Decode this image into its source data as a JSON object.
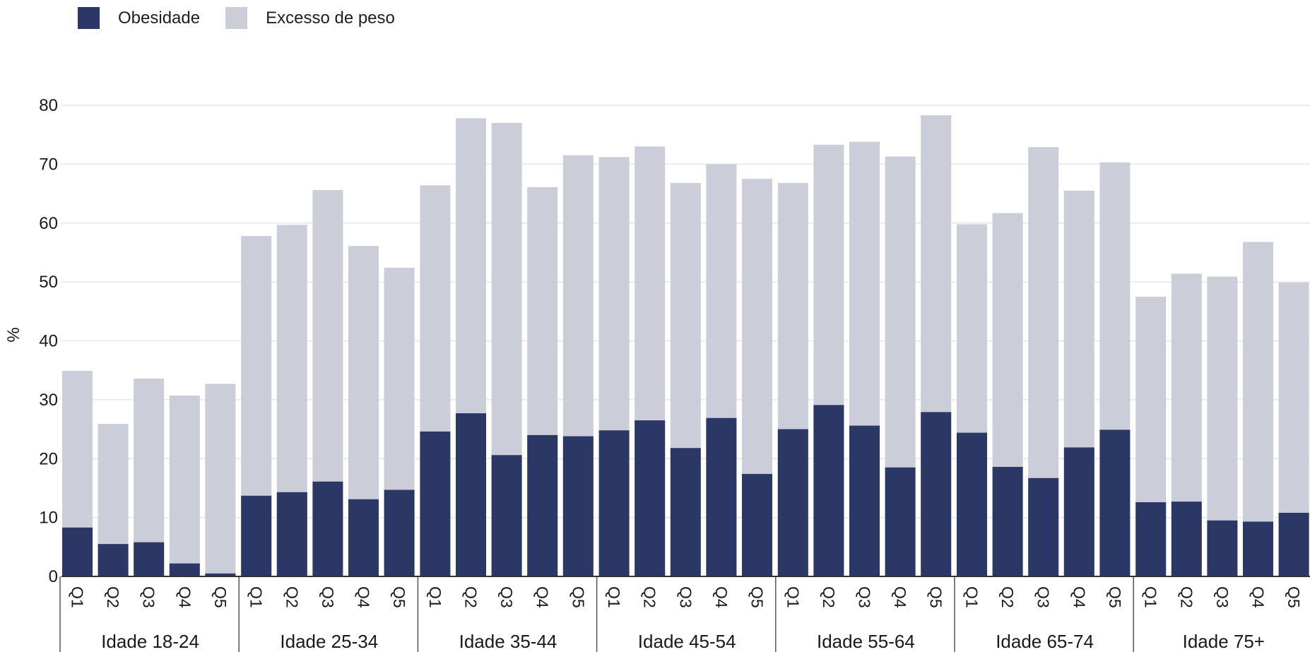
{
  "legend": {
    "items": [
      {
        "label": "Obesidade",
        "color": "#2b3865"
      },
      {
        "label": "Excesso de peso",
        "color": "#cbcdd9"
      }
    ]
  },
  "chart_data": {
    "type": "bar",
    "stacked": true,
    "ylabel": "%",
    "ylim": [
      0,
      80
    ],
    "yticks": [
      0,
      10,
      20,
      30,
      40,
      50,
      60,
      70,
      80
    ],
    "grid": true,
    "legend_position": "top-left",
    "groups": [
      {
        "label": "Idade 18-24",
        "categories": [
          "Q1",
          "Q2",
          "Q3",
          "Q4",
          "Q5"
        ],
        "obesidade": [
          8.3,
          5.5,
          5.8,
          2.2,
          0.5
        ],
        "total": [
          34.9,
          25.9,
          33.6,
          30.7,
          32.7
        ]
      },
      {
        "label": "Idade 25-34",
        "categories": [
          "Q1",
          "Q2",
          "Q3",
          "Q4",
          "Q5"
        ],
        "obesidade": [
          13.7,
          14.3,
          16.1,
          13.1,
          14.7
        ],
        "total": [
          57.8,
          59.7,
          65.6,
          56.1,
          52.4
        ]
      },
      {
        "label": "Idade 35-44",
        "categories": [
          "Q1",
          "Q2",
          "Q3",
          "Q4",
          "Q5"
        ],
        "obesidade": [
          24.6,
          27.7,
          20.6,
          24.0,
          23.8
        ],
        "total": [
          66.4,
          77.8,
          77.0,
          66.1,
          71.5
        ]
      },
      {
        "label": "Idade 45-54",
        "categories": [
          "Q1",
          "Q2",
          "Q3",
          "Q4",
          "Q5"
        ],
        "obesidade": [
          24.8,
          26.5,
          21.8,
          26.9,
          17.4
        ],
        "total": [
          71.2,
          73.0,
          66.8,
          70.0,
          67.5
        ]
      },
      {
        "label": "Idade 55-64",
        "categories": [
          "Q1",
          "Q2",
          "Q3",
          "Q4",
          "Q5"
        ],
        "obesidade": [
          25.0,
          29.1,
          25.6,
          18.5,
          27.9
        ],
        "total": [
          66.8,
          73.3,
          73.8,
          71.3,
          78.3
        ]
      },
      {
        "label": "Idade 65-74",
        "categories": [
          "Q1",
          "Q2",
          "Q3",
          "Q4",
          "Q5"
        ],
        "obesidade": [
          24.4,
          18.6,
          16.7,
          21.9,
          24.9
        ],
        "total": [
          59.8,
          61.7,
          72.9,
          65.5,
          70.3
        ]
      },
      {
        "label": "Idade 75+",
        "categories": [
          "Q1",
          "Q2",
          "Q3",
          "Q4",
          "Q5"
        ],
        "obesidade": [
          12.6,
          12.7,
          9.5,
          9.3,
          10.8
        ],
        "total": [
          47.5,
          51.4,
          50.9,
          56.8,
          49.9
        ]
      }
    ]
  }
}
